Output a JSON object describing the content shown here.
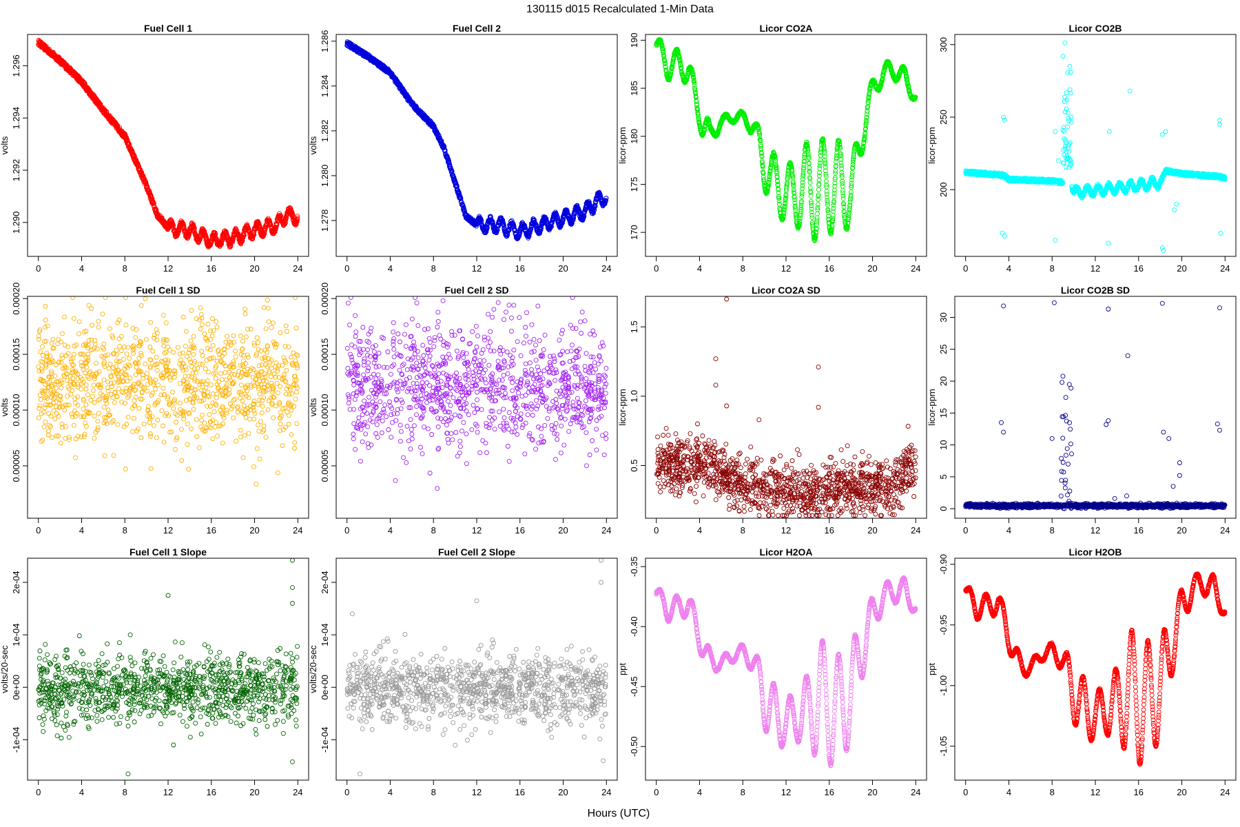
{
  "figure": {
    "title": "130115   d015   Recalculated 1-Min Data",
    "xlabel": "Hours (UTC)"
  },
  "chart_data": [
    {
      "type": "scatter",
      "title": "Fuel Cell 1",
      "ylabel": "volts",
      "color": "#ff0000",
      "xlim": [
        -1,
        25
      ],
      "ylim": [
        1.2887,
        1.2972
      ],
      "xticks": [
        0,
        4,
        8,
        12,
        16,
        20,
        24
      ],
      "yticks": [
        1.29,
        1.292,
        1.294,
        1.296
      ],
      "ytick_labels": [
        "1.290",
        "1.292",
        "1.294",
        "1.296"
      ],
      "gen": "drift",
      "x": [
        0,
        2,
        4,
        6,
        8,
        10,
        11,
        12,
        14,
        16,
        18,
        20,
        22,
        23,
        24
      ],
      "values": [
        1.2969,
        1.2962,
        1.2954,
        1.2943,
        1.2933,
        1.2914,
        1.2903,
        1.2898,
        1.2897,
        1.2893,
        1.2894,
        1.2897,
        1.2899,
        1.2903,
        1.2902
      ],
      "spread": 0.0002,
      "wave": 0.0004,
      "wave_start": 12
    },
    {
      "type": "scatter",
      "title": "Fuel Cell 2",
      "ylabel": "volts",
      "color": "#0000dd",
      "xlim": [
        -1,
        25
      ],
      "ylim": [
        1.2764,
        1.2863
      ],
      "xticks": [
        0,
        4,
        8,
        12,
        16,
        20,
        24
      ],
      "yticks": [
        1.278,
        1.28,
        1.282,
        1.284,
        1.286
      ],
      "ytick_labels": [
        "1.278",
        "1.280",
        "1.282",
        "1.284",
        "1.286"
      ],
      "gen": "drift",
      "x": [
        0,
        2,
        4,
        6,
        8,
        9,
        10,
        11,
        12,
        14,
        16,
        18,
        20,
        22,
        23,
        24
      ],
      "values": [
        1.2859,
        1.2853,
        1.2846,
        1.2832,
        1.2822,
        1.2812,
        1.2797,
        1.2782,
        1.2778,
        1.2778,
        1.2775,
        1.2778,
        1.2781,
        1.2784,
        1.2788,
        1.2791
      ],
      "spread": 0.0002,
      "wave": 0.0005,
      "wave_start": 12
    },
    {
      "type": "scatter",
      "title": "Licor CO2A",
      "ylabel": "licor-ppm",
      "color": "#00ee00",
      "xlim": [
        -1,
        25
      ],
      "ylim": [
        167.5,
        190.6
      ],
      "xticks": [
        0,
        4,
        8,
        12,
        16,
        20,
        24
      ],
      "yticks": [
        170,
        175,
        180,
        185,
        190
      ],
      "ytick_labels": [
        "170",
        "175",
        "180",
        "185",
        "190"
      ],
      "gen": "osc",
      "x": [
        0,
        1,
        2,
        3,
        4,
        4.5,
        5,
        6,
        7,
        8,
        9,
        10,
        11,
        12,
        13,
        14,
        15,
        16,
        17,
        18,
        19,
        20,
        21,
        22,
        23,
        24
      ],
      "values": [
        189.5,
        187.5,
        187.5,
        187,
        182,
        181,
        180,
        181.5,
        182,
        182,
        181,
        177,
        175,
        174,
        174,
        175,
        174,
        175,
        174.5,
        174,
        180,
        185,
        186.5,
        187,
        186,
        184
      ],
      "amp": [
        1,
        1.5,
        1.5,
        1.5,
        1,
        2,
        1,
        0.5,
        0.5,
        0.5,
        1,
        2.5,
        3,
        3,
        3.5,
        4.5,
        5.5,
        5,
        5,
        3,
        2,
        1,
        1,
        1,
        1,
        0.5
      ],
      "period": 1.5,
      "spread": 0.3
    },
    {
      "type": "scatter",
      "title": "Licor CO2B",
      "ylabel": "licor-ppm",
      "color": "#00ffff",
      "xlim": [
        -1,
        25
      ],
      "ylim": [
        154,
        307
      ],
      "xticks": [
        0,
        4,
        8,
        12,
        16,
        20,
        24
      ],
      "yticks": [
        200,
        250,
        300
      ],
      "ytick_labels": [
        "200",
        "250",
        "300"
      ],
      "gen": "co2b",
      "base": {
        "x": [
          0,
          3.5,
          4,
          8,
          9,
          9.6,
          10,
          14,
          18,
          18.5,
          20,
          23.5,
          24
        ],
        "values": [
          212,
          210,
          207,
          206,
          205,
          205,
          198,
          201,
          205,
          213,
          211,
          209,
          208
        ]
      },
      "wave": 2,
      "spike_range": [
        9,
        9.8
      ],
      "spike_values": [
        215,
        305
      ],
      "outliers": [
        [
          3.5,
          250
        ],
        [
          3.6,
          248
        ],
        [
          3.4,
          170
        ],
        [
          3.6,
          168
        ],
        [
          8.3,
          165
        ],
        [
          8.3,
          240
        ],
        [
          8.6,
          220
        ],
        [
          13.2,
          163
        ],
        [
          13.3,
          240
        ],
        [
          15.2,
          268
        ],
        [
          18.2,
          160
        ],
        [
          18.3,
          158
        ],
        [
          18.2,
          238
        ],
        [
          18.5,
          240
        ],
        [
          19.3,
          186
        ],
        [
          19.5,
          190
        ],
        [
          23.5,
          248
        ],
        [
          23.5,
          245
        ],
        [
          23.6,
          170
        ]
      ]
    },
    {
      "type": "scatter",
      "title": "Fuel Cell 1 SD",
      "ylabel": "volts",
      "color": "#ffb000",
      "xlim": [
        -1,
        25
      ],
      "ylim": [
        3e-06,
        0.000202
      ],
      "xticks": [
        0,
        4,
        8,
        12,
        16,
        20,
        24
      ],
      "yticks": [
        5e-05,
        0.0001,
        0.00015,
        0.0002
      ],
      "ytick_labels": [
        "0.00005",
        "0.00010",
        "0.00015",
        "0.00020"
      ],
      "gen": "noise",
      "mean": 0.000125,
      "sd": 2.8e-05,
      "lo": 5e-06,
      "hi": 0.000201,
      "max_point": [
        6.2,
        0.000201
      ]
    },
    {
      "type": "scatter",
      "title": "Fuel Cell 2 SD",
      "ylabel": "volts",
      "color": "#a020f0",
      "xlim": [
        -1,
        25
      ],
      "ylim": [
        3e-06,
        0.000202
      ],
      "xticks": [
        0,
        4,
        8,
        12,
        16,
        20,
        24
      ],
      "yticks": [
        5e-05,
        0.0001,
        0.00015,
        0.0002
      ],
      "ytick_labels": [
        "0.00005",
        "0.00010",
        "0.00015",
        "0.00020"
      ],
      "gen": "noise",
      "mean": 0.000122,
      "sd": 2.8e-05,
      "lo": 5e-06,
      "hi": 0.000201,
      "max_point": [
        6.3,
        0.000201
      ]
    },
    {
      "type": "scatter",
      "title": "Licor CO2A SD",
      "ylabel": "licor-ppm",
      "color": "#8b0000",
      "xlim": [
        -1,
        25
      ],
      "ylim": [
        0.12,
        1.72
      ],
      "xticks": [
        0,
        4,
        8,
        12,
        16,
        20,
        24
      ],
      "yticks": [
        0.5,
        1.0,
        1.5
      ],
      "ytick_labels": [
        "0.5",
        "1.0",
        "1.5"
      ],
      "gen": "sdtrend",
      "x": [
        0,
        4,
        6,
        8,
        12,
        14,
        18,
        22,
        24
      ],
      "values": [
        0.52,
        0.5,
        0.45,
        0.38,
        0.33,
        0.3,
        0.35,
        0.35,
        0.55
      ],
      "sd": 0.1,
      "lo": 0.14,
      "outliers": [
        [
          6.5,
          1.7
        ],
        [
          5.5,
          1.27
        ],
        [
          15,
          1.21
        ],
        [
          5.5,
          1.08
        ],
        [
          6.5,
          0.93
        ],
        [
          15,
          0.92
        ],
        [
          9.5,
          0.83
        ]
      ]
    },
    {
      "type": "scatter",
      "title": "Licor CO2B SD",
      "ylabel": "licor-ppm",
      "color": "#00008b",
      "xlim": [
        -1,
        25
      ],
      "ylim": [
        -1.5,
        33.3
      ],
      "xticks": [
        0,
        4,
        8,
        12,
        16,
        20,
        24
      ],
      "yticks": [
        0,
        5,
        10,
        15,
        20,
        25,
        30
      ],
      "ytick_labels": [
        "0",
        "5",
        "10",
        "15",
        "20",
        "25",
        "30"
      ],
      "gen": "co2bsd",
      "base": 0.45,
      "spike_range": [
        8.8,
        9.8
      ],
      "spike_max": 21,
      "outliers": [
        [
          3.5,
          31.8
        ],
        [
          3.3,
          13.5
        ],
        [
          3.5,
          12
        ],
        [
          8.2,
          32.3
        ],
        [
          8,
          11
        ],
        [
          13.2,
          31.3
        ],
        [
          13.2,
          13.8
        ],
        [
          13,
          13.2
        ],
        [
          15,
          24
        ],
        [
          18.2,
          32.2
        ],
        [
          18.3,
          12
        ],
        [
          18.8,
          11
        ],
        [
          19.8,
          7.2
        ],
        [
          19.8,
          5.2
        ],
        [
          19.2,
          3.5
        ],
        [
          23.5,
          31.5
        ],
        [
          23.3,
          13.3
        ],
        [
          23.5,
          12.3
        ],
        [
          14.9,
          2
        ],
        [
          13.8,
          1.6
        ]
      ]
    },
    {
      "type": "scatter",
      "title": "Fuel Cell 1 Slope",
      "ylabel": "volts/20-sec",
      "color": "#006400",
      "xlim": [
        -1,
        25
      ],
      "ylim": [
        -0.000177,
        0.000246
      ],
      "xticks": [
        0,
        4,
        8,
        12,
        16,
        20,
        24
      ],
      "yticks": [
        -0.0001,
        0,
        0.0001,
        0.0002
      ],
      "ytick_labels": [
        "-1e-04",
        "0e+00",
        "1e-04",
        "2e-04"
      ],
      "gen": "noise",
      "mean": -3e-06,
      "sd": 3.3e-05,
      "lo": -0.00014,
      "hi": 0.00014,
      "outliers": [
        [
          23.5,
          0.000242
        ],
        [
          23.5,
          0.00019
        ],
        [
          23.5,
          0.00016
        ],
        [
          12,
          0.000175
        ],
        [
          13.3,
          8.5e-05
        ],
        [
          7.5,
          8.5e-05
        ],
        [
          8.5,
          0.0001
        ],
        [
          12.5,
          -0.00011
        ],
        [
          8.3,
          -0.000165
        ],
        [
          23.5,
          -0.000142
        ]
      ]
    },
    {
      "type": "scatter",
      "title": "Fuel Cell 2 Slope",
      "ylabel": "volts/20-sec",
      "color": "#999999",
      "xlim": [
        -1,
        25
      ],
      "ylim": [
        -0.000177,
        0.000246
      ],
      "xticks": [
        0,
        4,
        8,
        12,
        16,
        20,
        24
      ],
      "yticks": [
        -0.0001,
        0,
        0.0001,
        0.0002
      ],
      "ytick_labels": [
        "-1e-04",
        "0e+00",
        "1e-04",
        "2e-04"
      ],
      "gen": "noise",
      "mean": 0.0,
      "sd": 3.4e-05,
      "lo": -0.00014,
      "hi": 0.00014,
      "outliers": [
        [
          23.5,
          0.000242
        ],
        [
          23.5,
          0.0002
        ],
        [
          12,
          0.000165
        ],
        [
          0.5,
          0.00014
        ],
        [
          1.2,
          -0.000165
        ],
        [
          23.7,
          -0.00014
        ]
      ]
    },
    {
      "type": "scatter",
      "title": "Licor H2OA",
      "ylabel": "ppt",
      "color": "#ee82ee",
      "xlim": [
        -1,
        25
      ],
      "ylim": [
        -0.528,
        -0.343
      ],
      "xticks": [
        0,
        4,
        8,
        12,
        16,
        20,
        24
      ],
      "yticks": [
        -0.5,
        -0.45,
        -0.4,
        -0.35
      ],
      "ytick_labels": [
        "-0.50",
        "-0.45",
        "-0.40",
        "-0.35"
      ],
      "gen": "osc",
      "x": [
        0,
        1,
        2,
        3,
        4,
        5,
        6,
        7,
        8,
        9,
        10,
        11,
        12,
        13,
        14,
        15,
        16,
        17,
        18,
        19,
        20,
        21,
        22,
        23,
        24
      ],
      "values": [
        -0.372,
        -0.385,
        -0.385,
        -0.38,
        -0.41,
        -0.43,
        -0.43,
        -0.425,
        -0.42,
        -0.43,
        -0.46,
        -0.475,
        -0.48,
        -0.475,
        -0.47,
        -0.46,
        -0.465,
        -0.47,
        -0.455,
        -0.42,
        -0.39,
        -0.375,
        -0.37,
        -0.37,
        -0.385
      ],
      "amp": [
        0.005,
        0.01,
        0.01,
        0.01,
        0.01,
        0.01,
        0.005,
        0.005,
        0.005,
        0.01,
        0.025,
        0.025,
        0.02,
        0.02,
        0.03,
        0.05,
        0.05,
        0.045,
        0.04,
        0.025,
        0.015,
        0.01,
        0.01,
        0.01,
        0.005
      ],
      "period": 1.5,
      "spread": 0.002
    },
    {
      "type": "scatter",
      "title": "Licor H2OB",
      "ylabel": "ppt",
      "color": "#ff0000",
      "xlim": [
        -1,
        25
      ],
      "ylim": [
        -1.078,
        -0.895
      ],
      "xticks": [
        0,
        4,
        8,
        12,
        16,
        20,
        24
      ],
      "yticks": [
        -1.05,
        -1.0,
        -0.95,
        -0.9
      ],
      "ytick_labels": [
        "-1.05",
        "-1.00",
        "-0.95",
        "-0.90"
      ],
      "gen": "osc",
      "x": [
        0,
        1,
        2,
        3,
        4,
        5,
        6,
        7,
        8,
        9,
        10,
        11,
        12,
        13,
        14,
        15,
        16,
        17,
        18,
        19,
        20,
        21,
        22,
        23,
        24
      ],
      "values": [
        -0.922,
        -0.935,
        -0.935,
        -0.93,
        -0.96,
        -0.985,
        -0.985,
        -0.975,
        -0.97,
        -0.98,
        -1.005,
        -1.02,
        -1.025,
        -1.02,
        -1.015,
        -1.005,
        -1.01,
        -1.015,
        -1.0,
        -0.97,
        -0.935,
        -0.92,
        -0.915,
        -0.92,
        -0.94
      ],
      "amp": [
        0.005,
        0.01,
        0.01,
        0.01,
        0.01,
        0.01,
        0.005,
        0.005,
        0.005,
        0.01,
        0.025,
        0.025,
        0.02,
        0.02,
        0.03,
        0.05,
        0.055,
        0.05,
        0.04,
        0.025,
        0.015,
        0.01,
        0.01,
        0.01,
        0.005
      ],
      "period": 1.5,
      "spread": 0.002
    }
  ]
}
